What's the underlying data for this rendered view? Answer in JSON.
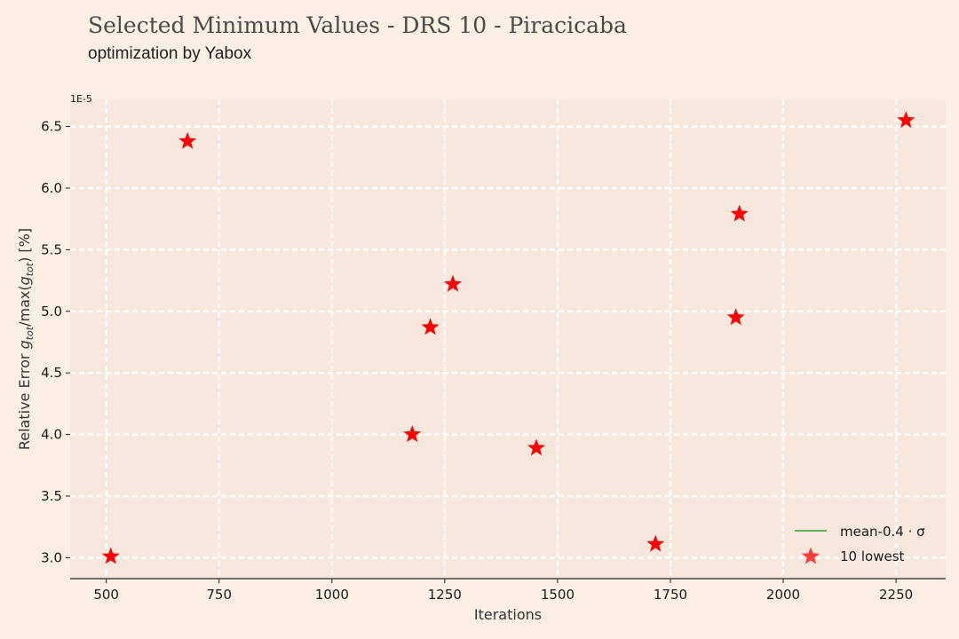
{
  "header": {
    "title": "Selected Minimum Values - DRS 10 - Piracicaba",
    "subtitle": "optimization by Yabox"
  },
  "colors": {
    "background": "#fcefe4",
    "plot_area": "#f8e7dc",
    "grid": "#ffffff",
    "marker": "#ff0000",
    "legend_line": "#2ca02c"
  },
  "chart_data": {
    "type": "scatter",
    "xlabel": "Iterations",
    "ylabel_parts": {
      "prefix": "Relative Error ",
      "g1": "g",
      "sub1": "tot",
      "mid": "/max(",
      "g2": "g",
      "sub2": "tot",
      "suffix": ") [%]"
    },
    "y_scale_label": "1E-5",
    "xlim": [
      420,
      2360
    ],
    "ylim": [
      2.83,
      6.72
    ],
    "xticks": [
      500,
      750,
      1000,
      1250,
      1500,
      1750,
      2000,
      2250
    ],
    "yticks": [
      3.0,
      3.5,
      4.0,
      4.5,
      5.0,
      5.5,
      6.0,
      6.5
    ],
    "grid": true,
    "legend_position": "bottom-right",
    "series": [
      {
        "name": "10 lowest",
        "marker": "star-icon",
        "points": [
          {
            "x": 510,
            "y": 3.01
          },
          {
            "x": 680,
            "y": 6.38
          },
          {
            "x": 1178,
            "y": 4.0
          },
          {
            "x": 1218,
            "y": 4.87
          },
          {
            "x": 1268,
            "y": 5.22
          },
          {
            "x": 1453,
            "y": 3.89
          },
          {
            "x": 1717,
            "y": 3.11
          },
          {
            "x": 1895,
            "y": 4.95
          },
          {
            "x": 1903,
            "y": 5.79
          },
          {
            "x": 2272,
            "y": 6.55
          }
        ]
      }
    ],
    "legend": [
      {
        "label": "mean-0.4 · σ",
        "kind": "line"
      },
      {
        "label": "10 lowest",
        "kind": "star"
      }
    ]
  }
}
